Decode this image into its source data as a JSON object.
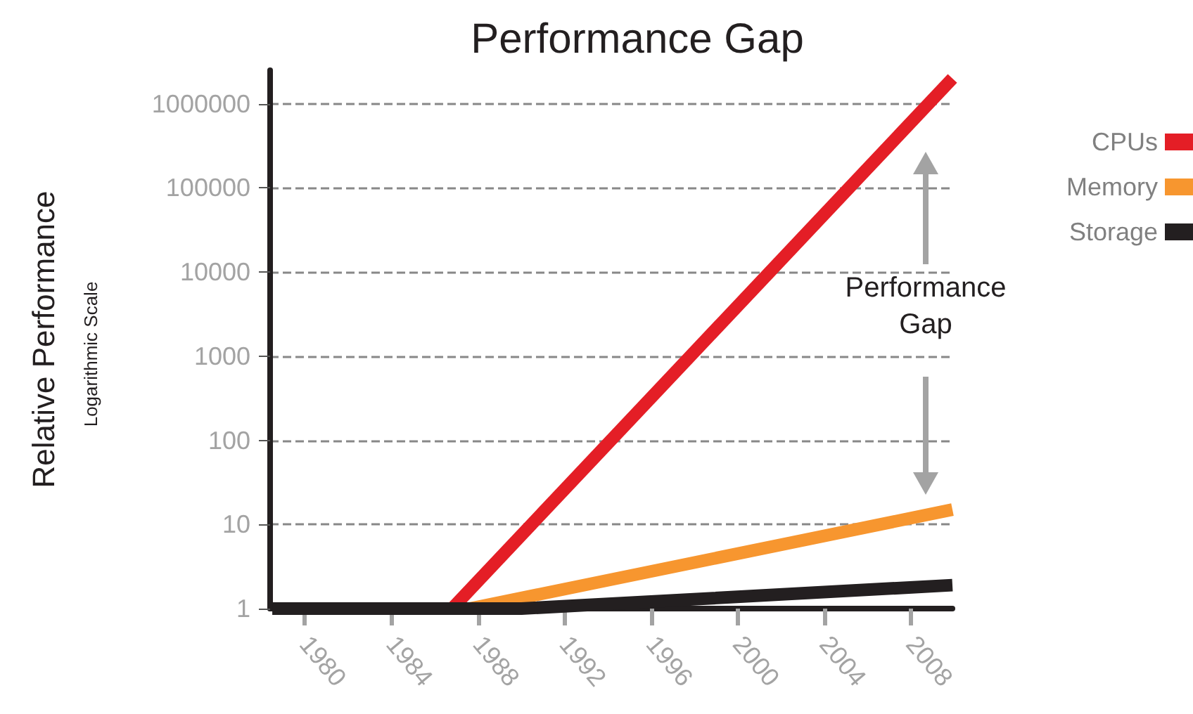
{
  "chart_data": {
    "type": "line",
    "title": "Performance Gap",
    "ylabel": "Relative Performance",
    "annotations": [
      "Logarithmic Scale",
      "Performance Gap"
    ],
    "series": [
      {
        "name": "CPUs",
        "color": "#e41e26",
        "x": [
          1986.8,
          2009.9
        ],
        "values": [
          1,
          2000000
        ]
      },
      {
        "name": "Memory",
        "color": "#f7962f",
        "x": [
          1987.6,
          2009.9
        ],
        "values": [
          1,
          15
        ]
      },
      {
        "name": "Storage",
        "color": "#231f20",
        "x": [
          1978.5,
          1990,
          2009.9
        ],
        "values": [
          1,
          1,
          1.9
        ]
      }
    ],
    "xlim": [
      1978.4,
      2009.9
    ],
    "xticks": [
      1980,
      1984,
      1988,
      1992,
      1996,
      2000,
      2004,
      2008
    ],
    "ylim": [
      1,
      2500000
    ],
    "yticks": [
      1,
      10,
      100,
      1000,
      10000,
      100000,
      1000000
    ],
    "log": "y",
    "grid": "y",
    "legend": "right",
    "marker": "none",
    "line_style": "solid"
  }
}
